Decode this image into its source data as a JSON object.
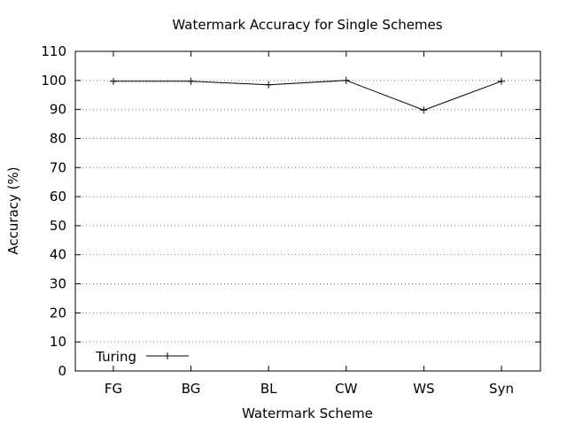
{
  "chart_data": {
    "type": "line",
    "title": "Watermark Accuracy for Single Schemes",
    "xlabel": "Watermark Scheme",
    "ylabel": "Accuracy (%)",
    "categories": [
      "FG",
      "BG",
      "BL",
      "CW",
      "WS",
      "Syn"
    ],
    "series": [
      {
        "name": "Turing",
        "values": [
          99.7,
          99.7,
          98.5,
          100,
          89.8,
          99.7
        ]
      }
    ],
    "ylim": [
      0,
      110
    ],
    "yticks": [
      0,
      10,
      20,
      30,
      40,
      50,
      60,
      70,
      80,
      90,
      100,
      110
    ],
    "grid": "horizontal dotted",
    "legend": "bottom-left",
    "colors": {
      "line": "#000000",
      "axis": "#000000",
      "grid": "#777777"
    },
    "marker": "plus"
  }
}
